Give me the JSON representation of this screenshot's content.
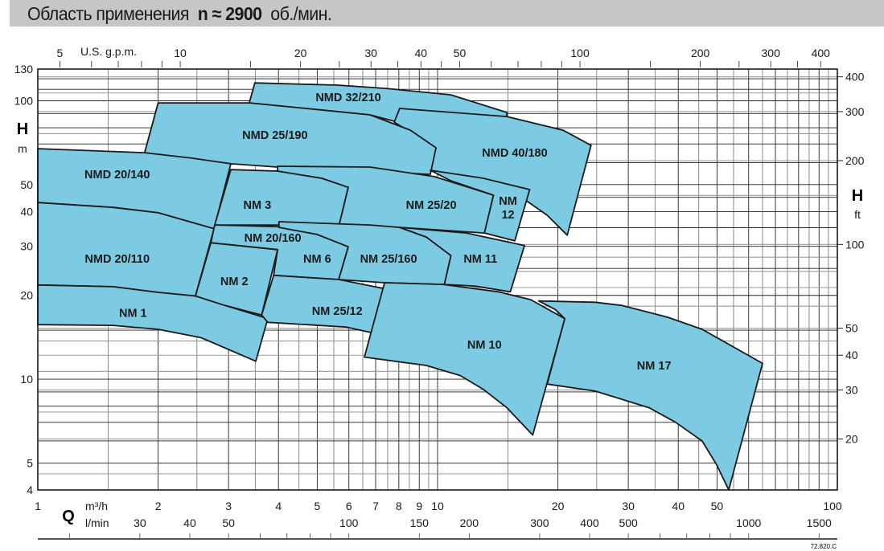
{
  "header": {
    "title_prefix": "Область применения",
    "title_speed": "n ≈ 2900",
    "title_unit": "об./мин."
  },
  "chart_data": {
    "type": "area",
    "title": "Область применения n ≈ 2900 об./мин.",
    "x_scale": "log",
    "y_scale": "log",
    "xlim": [
      1,
      100
    ],
    "ylim": [
      4,
      130
    ],
    "grid": true,
    "fill_color": "#7dcae3",
    "outline_color": "#1a1a1a",
    "left_axis": {
      "label": "H",
      "unit": "m",
      "ticks": [
        130,
        100,
        50,
        40,
        30,
        20,
        10,
        5,
        4
      ]
    },
    "right_axis": {
      "label": "H",
      "unit": "ft",
      "ticks": [
        400,
        300,
        200,
        100,
        50,
        40,
        30,
        20
      ]
    },
    "top_axis": {
      "label": "U.S. g.p.m.",
      "ticks": [
        5,
        10,
        20,
        30,
        40,
        50,
        100,
        200,
        300,
        400
      ],
      "minor_ticks": [
        5,
        6,
        7,
        8,
        9,
        10,
        15,
        20,
        25,
        30,
        35,
        40,
        45,
        50,
        60,
        70,
        80,
        90,
        100,
        150,
        200,
        250,
        300,
        350,
        400
      ]
    },
    "bottom_axis": {
      "label": "Q",
      "unit": "m³/h",
      "ticks": [
        1,
        2,
        3,
        4,
        5,
        6,
        7,
        8,
        9,
        10,
        20,
        30,
        40,
        50,
        100
      ]
    },
    "bottom_axis_2": {
      "unit": "l/min",
      "ticks": [
        30,
        40,
        50,
        100,
        150,
        200,
        300,
        400,
        500,
        1000,
        1500
      ],
      "minor_ticks": [
        20,
        30,
        40,
        50,
        60,
        70,
        80,
        90,
        100,
        150,
        200,
        300,
        400,
        500,
        600,
        700,
        800,
        900,
        1000,
        1500
      ]
    },
    "series": [
      {
        "name": "NMD 32/210",
        "label_at": [
          5.98,
          103
        ],
        "points": [
          [
            3.49,
            116
          ],
          [
            5.63,
            113.8
          ],
          [
            7.43,
            110.8
          ],
          [
            10.8,
            105
          ],
          [
            14.9,
            90.8
          ],
          [
            14.9,
            86.1
          ],
          [
            7.95,
            83.8
          ],
          [
            6.78,
            89.0
          ],
          [
            3.38,
            98.3
          ]
        ]
      },
      {
        "name": "NMD 40/180",
        "label_at": [
          15.6,
          65.1
        ],
        "points": [
          [
            8.04,
            93.9
          ],
          [
            14.9,
            87.8
          ],
          [
            20.6,
            78.4
          ],
          [
            24.2,
            69.2
          ],
          [
            21.1,
            32.9
          ],
          [
            18.8,
            38.8
          ],
          [
            16.7,
            43.7
          ],
          [
            13.0,
            50.6
          ],
          [
            9.59,
            56.3
          ],
          [
            9.91,
            67.8
          ],
          [
            7.79,
            83.8
          ]
        ]
      },
      {
        "name": "NMD 25/190",
        "label_at": [
          3.92,
          75.4
        ],
        "points": [
          [
            2.0,
            98.3
          ],
          [
            3.38,
            98.3
          ],
          [
            4.68,
            93.9
          ],
          [
            6.78,
            89.0
          ],
          [
            8.55,
            78.4
          ],
          [
            9.91,
            67.8
          ],
          [
            9.59,
            54.4
          ],
          [
            5.9,
            56.3
          ],
          [
            3.98,
            57.8
          ],
          [
            3.04,
            59.4
          ],
          [
            1.85,
            65.1
          ]
        ]
      },
      {
        "name": "NMD 20/140",
        "label_at": [
          1.58,
          54.4
        ],
        "points": [
          [
            1,
            67.3
          ],
          [
            1.85,
            65.1
          ],
          [
            2.44,
            62.2
          ],
          [
            3.04,
            59.4
          ],
          [
            2.76,
            34.7
          ],
          [
            2.0,
            39.6
          ],
          [
            1.54,
            41.4
          ],
          [
            1,
            43.1
          ]
        ]
      },
      {
        "name": "NMD 20/110",
        "label_at": [
          1.58,
          27.1
        ],
        "points": [
          [
            1,
            43.1
          ],
          [
            1.54,
            41.4
          ],
          [
            2.0,
            39.6
          ],
          [
            2.76,
            34.7
          ],
          [
            2.48,
            19.9
          ],
          [
            2.0,
            20.5
          ],
          [
            1.54,
            21.5
          ],
          [
            1,
            21.8
          ]
        ]
      },
      {
        "name": "NM 1",
        "label_at": [
          1.73,
          17.3
        ],
        "points": [
          [
            1,
            21.8
          ],
          [
            1.54,
            21.5
          ],
          [
            2.0,
            20.5
          ],
          [
            2.48,
            19.9
          ],
          [
            2.94,
            18.4
          ],
          [
            3.76,
            16.5
          ],
          [
            3.51,
            11.6
          ],
          [
            2.56,
            14.1
          ],
          [
            2.0,
            15.1
          ],
          [
            1.54,
            15.6
          ],
          [
            1,
            15.7
          ]
        ]
      },
      {
        "name": "NM 3",
        "label_at": [
          3.54,
          42.3
        ],
        "points": [
          [
            3.04,
            56.6
          ],
          [
            3.98,
            55.9
          ],
          [
            5.13,
            52.7
          ],
          [
            5.98,
            48.9
          ],
          [
            5.66,
            35.3
          ],
          [
            3.98,
            35.8
          ],
          [
            2.77,
            35.8
          ]
        ]
      },
      {
        "name": "NM 25/20",
        "label_at": [
          9.64,
          42.3
        ],
        "points": [
          [
            3.98,
            58.2
          ],
          [
            6.78,
            57.8
          ],
          [
            9.82,
            53.4
          ],
          [
            13.8,
            45.8
          ],
          [
            13.1,
            33.5
          ],
          [
            8.04,
            35.1
          ],
          [
            5.66,
            35.3
          ],
          [
            5.98,
            48.9
          ],
          [
            5.13,
            52.7
          ],
          [
            3.98,
            55.9
          ]
        ]
      },
      {
        "name": "NM 12",
        "label_at": [
          15.0,
          41.4
        ],
        "points": [
          [
            9.59,
            56.3
          ],
          [
            13.0,
            52.7
          ],
          [
            17.0,
            48.0
          ],
          [
            15.6,
            31.4
          ],
          [
            13.1,
            33.5
          ],
          [
            13.8,
            45.8
          ],
          [
            10.8,
            51.6
          ]
        ]
      },
      {
        "name": "NM 20/160",
        "label_at": [
          3.87,
          32.2
        ],
        "points": [
          [
            2.77,
            35.8
          ],
          [
            3.98,
            35.3
          ],
          [
            5.0,
            33.1
          ],
          [
            5.98,
            29.9
          ],
          [
            5.66,
            22.8
          ],
          [
            3.89,
            23.6
          ],
          [
            3.98,
            29.2
          ],
          [
            2.71,
            30.9
          ]
        ]
      },
      {
        "name": "NM 6",
        "label_at": [
          5.0,
          27.1
        ],
        "points": []
      },
      {
        "name": "NM 2",
        "label_at": [
          3.1,
          22.5
        ],
        "points": [
          [
            2.71,
            30.9
          ],
          [
            3.98,
            29.2
          ],
          [
            3.63,
            17.0
          ],
          [
            2.94,
            18.4
          ],
          [
            2.48,
            19.9
          ]
        ]
      },
      {
        "name": "NM 25/160",
        "label_at": [
          7.54,
          27.1
        ],
        "points": [
          [
            4.01,
            36.8
          ],
          [
            6.78,
            35.8
          ],
          [
            8.04,
            35.1
          ],
          [
            9.37,
            32.4
          ],
          [
            10.8,
            27.8
          ],
          [
            10.4,
            21.9
          ],
          [
            7.37,
            22.2
          ],
          [
            5.66,
            22.8
          ],
          [
            5.98,
            29.9
          ],
          [
            5.0,
            33.1
          ],
          [
            4.01,
            35.1
          ]
        ]
      },
      {
        "name": "NM 11",
        "label_at": [
          12.8,
          27.1
        ],
        "points": [
          [
            8.04,
            35.1
          ],
          [
            11.8,
            33.5
          ],
          [
            16.5,
            30.2
          ],
          [
            15.2,
            20.6
          ],
          [
            12.4,
            21.6
          ],
          [
            10.4,
            21.9
          ],
          [
            10.8,
            27.8
          ],
          [
            9.37,
            32.4
          ]
        ]
      },
      {
        "name": "NM 25/12",
        "label_at": [
          5.61,
          17.6
        ],
        "points": [
          [
            3.89,
            23.6
          ],
          [
            5.66,
            22.8
          ],
          [
            7.43,
            21.1
          ],
          [
            8.95,
            19.1
          ],
          [
            9.95,
            16.7
          ],
          [
            9.33,
            11.8
          ],
          [
            7.79,
            14.1
          ],
          [
            5.9,
            15.4
          ],
          [
            3.76,
            16.0
          ],
          [
            3.63,
            17.0
          ]
        ]
      },
      {
        "name": "NM 17",
        "label_at": [
          34.8,
          11.2
        ],
        "points": [
          [
            17.9,
            19.1
          ],
          [
            24.8,
            18.9
          ],
          [
            28.9,
            18.4
          ],
          [
            37.6,
            16.7
          ],
          [
            45.9,
            15.1
          ],
          [
            65.0,
            11.4
          ],
          [
            53.5,
            4.0
          ],
          [
            50,
            4.9
          ],
          [
            45.9,
            6.0
          ],
          [
            39.4,
            7.0
          ],
          [
            33.8,
            7.9
          ],
          [
            24.8,
            9.06
          ],
          [
            18.8,
            9.6
          ],
          [
            20.8,
            16.5
          ],
          [
            19.7,
            17.8
          ]
        ]
      },
      {
        "name": "NM 10",
        "label_at": [
          13.1,
          13.3
        ],
        "points": [
          [
            7.37,
            22.2
          ],
          [
            10.3,
            21.9
          ],
          [
            14.2,
            20.6
          ],
          [
            17.1,
            19.3
          ],
          [
            20.8,
            16.5
          ],
          [
            17.3,
            6.3
          ],
          [
            14.9,
            7.9
          ],
          [
            13.0,
            9.2
          ],
          [
            11.4,
            10.3
          ],
          [
            9.37,
            11.2
          ],
          [
            6.56,
            12.0
          ]
        ]
      }
    ]
  },
  "footer": {
    "code": "72.820.C"
  }
}
